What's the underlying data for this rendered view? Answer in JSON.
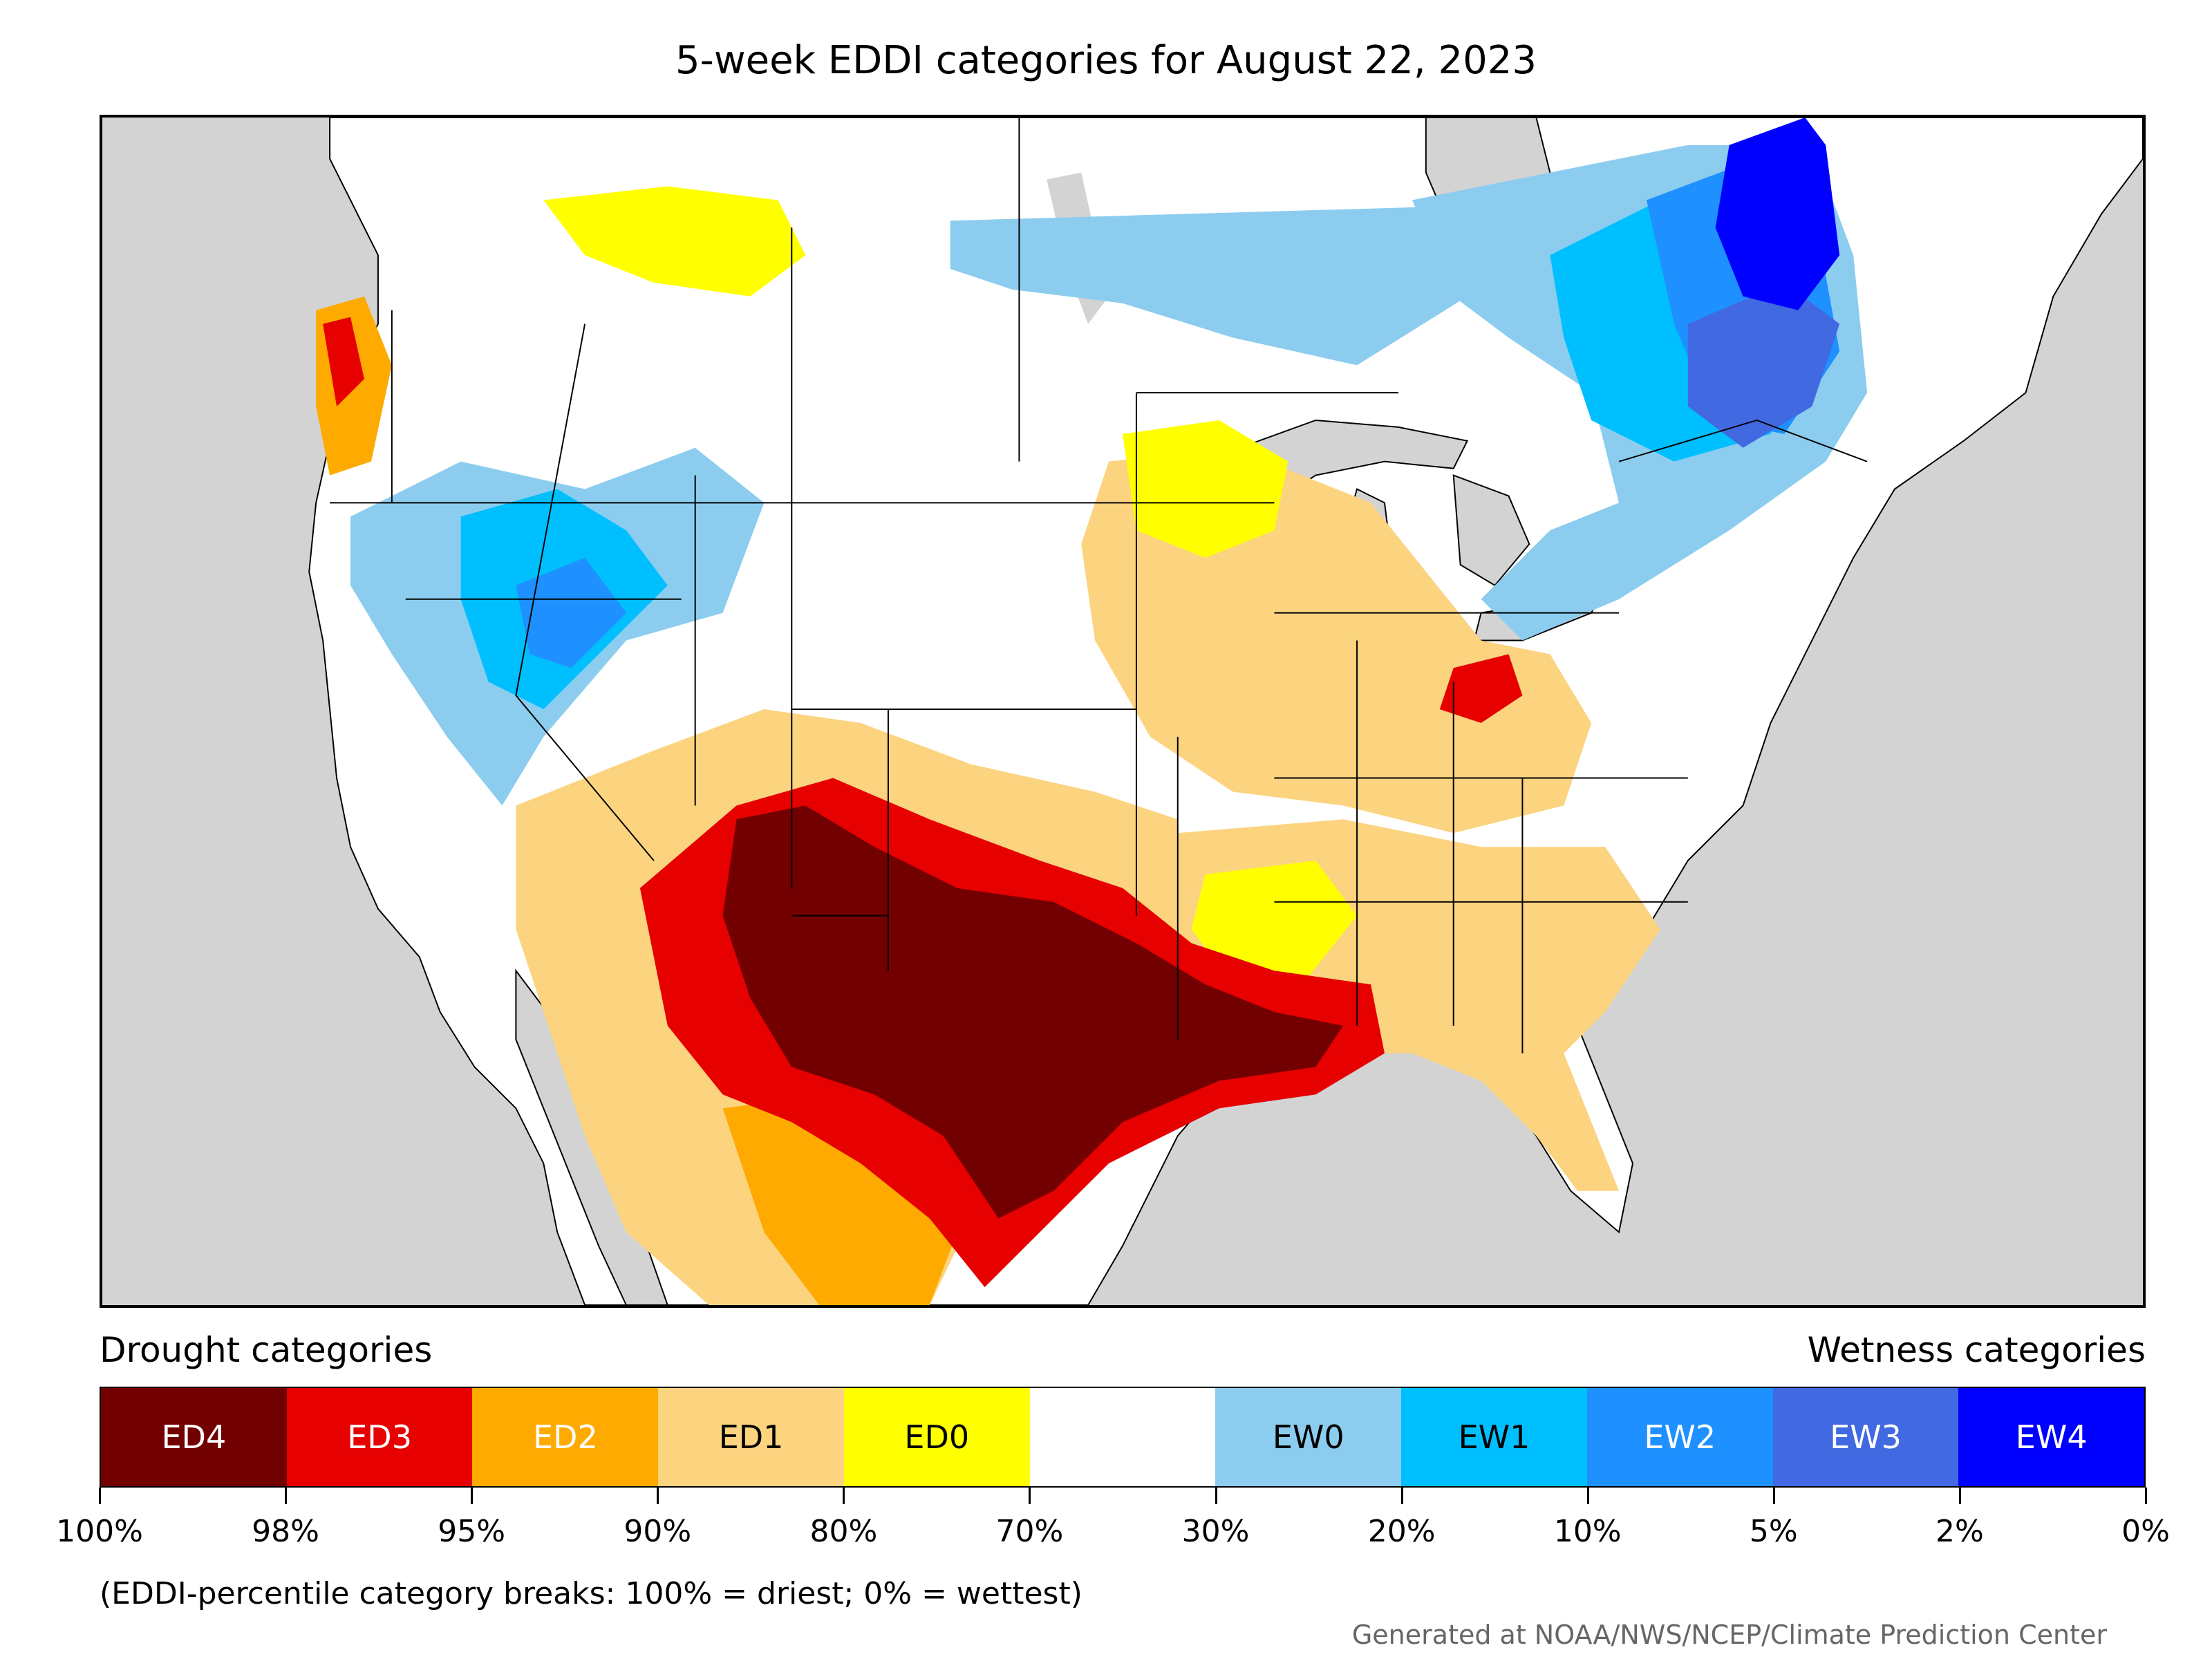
{
  "title": "5-week EDDI categories for August 22, 2023",
  "legend": {
    "left_heading": "Drought categories",
    "right_heading": "Wetness categories",
    "categories": [
      {
        "label": "ED4",
        "color": "#730000",
        "text_color": "#ffffff"
      },
      {
        "label": "ED3",
        "color": "#e60000",
        "text_color": "#ffffff"
      },
      {
        "label": "ED2",
        "color": "#ffaa00",
        "text_color": "#ffffff"
      },
      {
        "label": "ED1",
        "color": "#fcd37f",
        "text_color": "#000000"
      },
      {
        "label": "ED0",
        "color": "#ffff00",
        "text_color": "#000000"
      },
      {
        "label": "",
        "color": "#ffffff",
        "text_color": "#000000"
      },
      {
        "label": "EW0",
        "color": "#8ccdef",
        "text_color": "#000000"
      },
      {
        "label": "EW1",
        "color": "#00bfff",
        "text_color": "#000000"
      },
      {
        "label": "EW2",
        "color": "#1e90ff",
        "text_color": "#ffffff"
      },
      {
        "label": "EW3",
        "color": "#4169e1",
        "text_color": "#ffffff"
      },
      {
        "label": "EW4",
        "color": "#0000ff",
        "text_color": "#ffffff"
      }
    ],
    "ticks": [
      "100%",
      "98%",
      "95%",
      "90%",
      "80%",
      "70%",
      "30%",
      "20%",
      "10%",
      "5%",
      "2%",
      "0%"
    ]
  },
  "note": "(EDDI-percentile category breaks: 100% = driest; 0% = wettest)",
  "credit": "Generated at NOAA/NWS/NCEP/Climate Prediction Center",
  "map": {
    "ocean_color": "#d3d3d3",
    "land_color": "#ffffff",
    "lake_color": "#d3d3d3"
  }
}
